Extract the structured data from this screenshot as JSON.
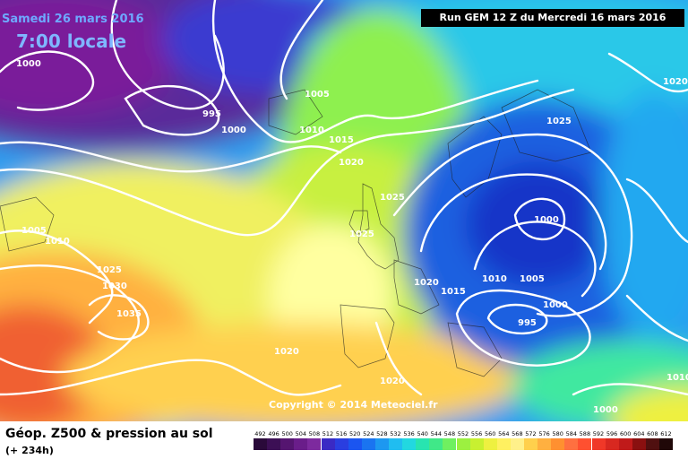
{
  "header": {
    "date": "Samedi 26 mars 2016",
    "time": "7:00 locale",
    "run": "Run GEM 12 Z du Mercredi 16 mars 2016"
  },
  "map": {
    "copyright": "Copyright © 2014 Meteociel.fr",
    "isobar_labels": [
      "1000",
      "995",
      "1000",
      "1005",
      "1010",
      "1015",
      "1020",
      "1020",
      "1025",
      "1025",
      "1025",
      "1000",
      "1005",
      "1010",
      "1015",
      "1020",
      "995",
      "1000",
      "1010",
      "1005",
      "1010",
      "1025",
      "1030",
      "1035",
      "1020",
      "1020",
      "1000",
      "1010",
      "1020"
    ]
  },
  "footer": {
    "product": "Géop. Z500 & pression au sol",
    "lead": "(+ 234h)"
  },
  "legend": {
    "values": [
      "492",
      "496",
      "500",
      "504",
      "508",
      "512",
      "516",
      "520",
      "524",
      "528",
      "532",
      "536",
      "540",
      "544",
      "548",
      "552",
      "556",
      "560",
      "564",
      "568",
      "572",
      "576",
      "580",
      "584",
      "588",
      "592",
      "596",
      "600",
      "604",
      "608",
      "612"
    ],
    "colors": [
      "#2a0a3a",
      "#3c0f55",
      "#551570",
      "#6a1d8a",
      "#7d2a9e",
      "#3a2ac4",
      "#2a3ee0",
      "#1b55f0",
      "#1a74f0",
      "#1d98f0",
      "#20bdf0",
      "#22d8e0",
      "#28e4b0",
      "#40e888",
      "#6ff060",
      "#9cf040",
      "#c8f030",
      "#eef040",
      "#fff060",
      "#fff08a",
      "#ffd04c",
      "#ffb040",
      "#ff9030",
      "#ff7040",
      "#ff5030",
      "#f03828",
      "#d82820",
      "#c01a1a",
      "#8a1010",
      "#501010",
      "#200808"
    ]
  }
}
